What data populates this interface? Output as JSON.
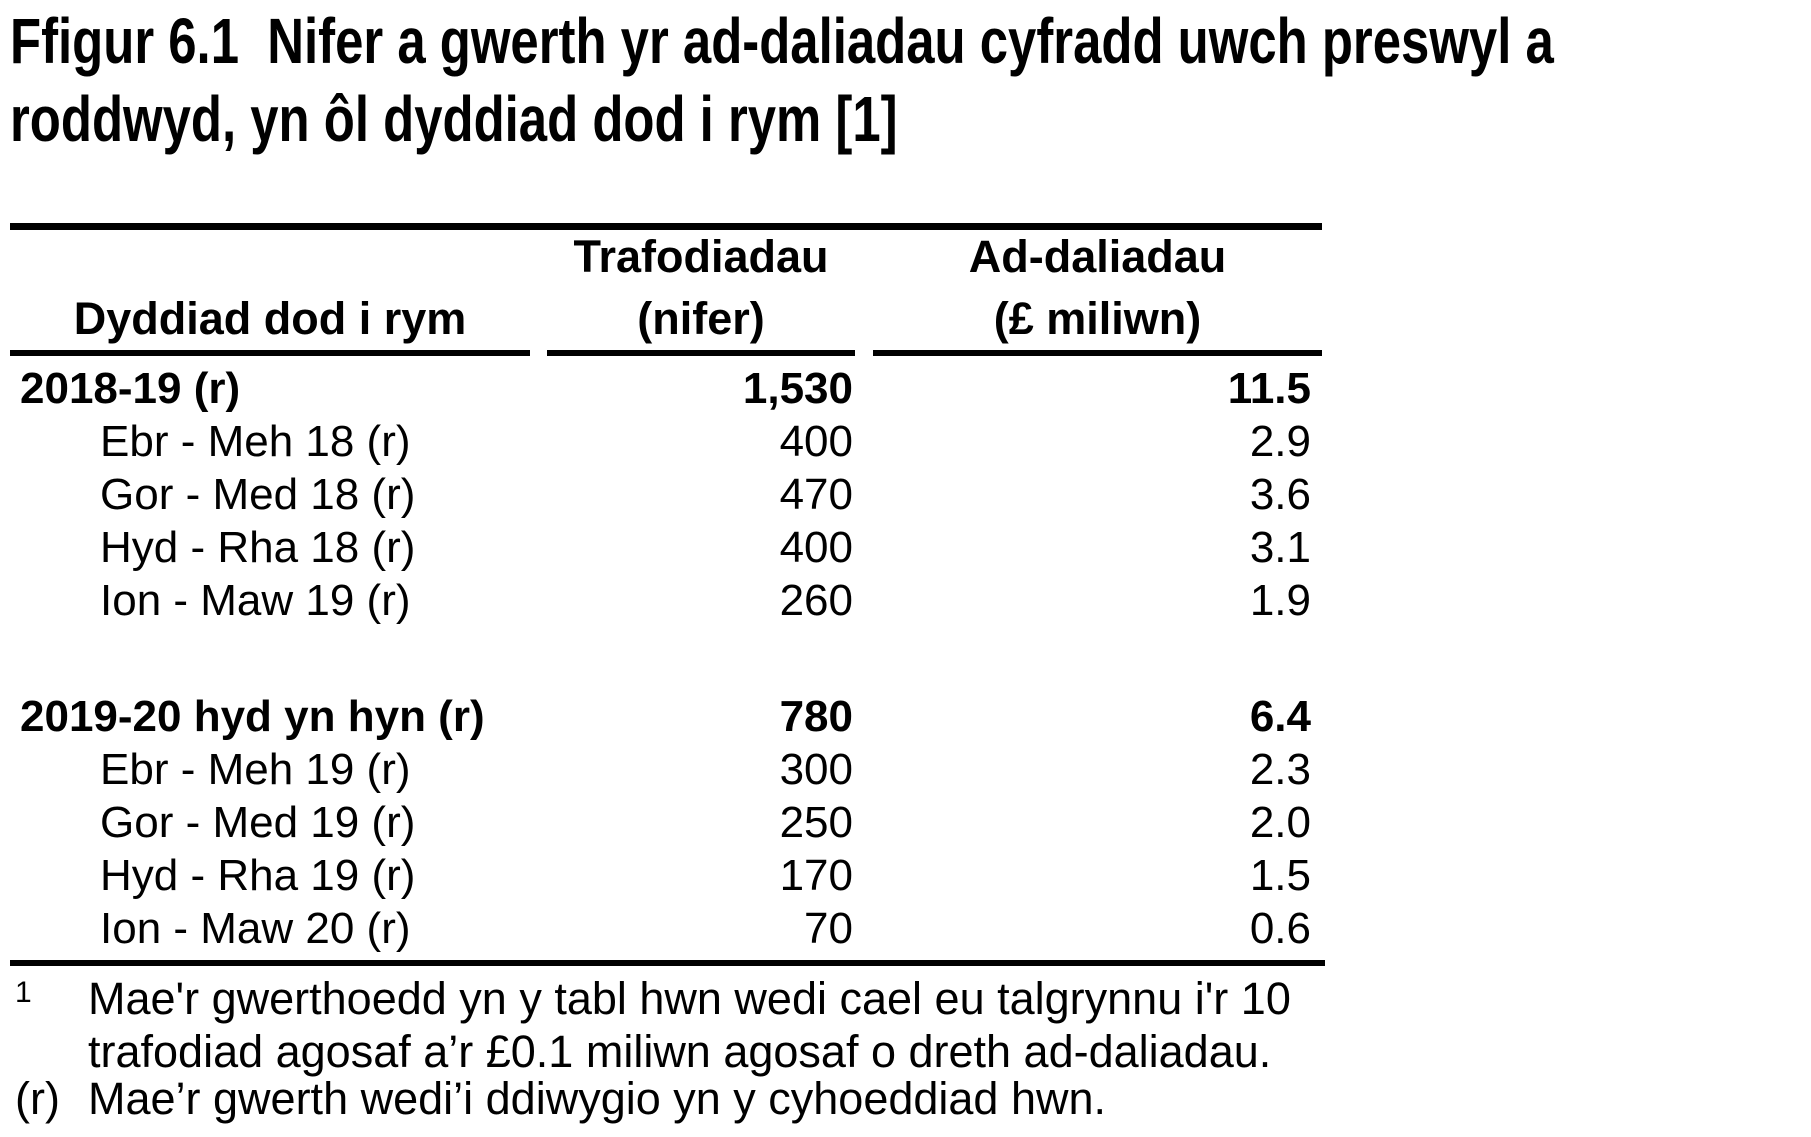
{
  "title": "Ffigur 6.1  Nifer a gwerth yr ad-daliadau cyfradd uwch preswyl a roddwyd, yn ôl dyddiad dod i rym [1]",
  "table": {
    "col_headers": {
      "col1_line2": "Dyddiad dod i rym",
      "col2_line1": "Trafodiadau",
      "col2_line2": "(nifer)",
      "col3_line1": "Ad-daliadau",
      "col3_line2": "(£ miliwn)"
    },
    "rows": [
      {
        "label": "2018-19 (r)",
        "nifer": "1,530",
        "miliwn": "11.5",
        "bold": true,
        "section": true
      },
      {
        "label": "Ebr - Meh 18 (r)",
        "nifer": "400",
        "miliwn": "2.9"
      },
      {
        "label": "Gor - Med 18 (r)",
        "nifer": "470",
        "miliwn": "3.6"
      },
      {
        "label": "Hyd - Rha 18 (r)",
        "nifer": "400",
        "miliwn": "3.1"
      },
      {
        "label": "Ion - Maw 19 (r)",
        "nifer": "260",
        "miliwn": "1.9"
      },
      {
        "spacer": true
      },
      {
        "label": "2019-20 hyd yn hyn (r)",
        "nifer": "780",
        "miliwn": "6.4",
        "bold": true,
        "section": true
      },
      {
        "label": "Ebr - Meh 19 (r)",
        "nifer": "300",
        "miliwn": "2.3"
      },
      {
        "label": "Gor - Med 19 (r)",
        "nifer": "250",
        "miliwn": "2.0"
      },
      {
        "label": "Hyd - Rha 19 (r)",
        "nifer": "170",
        "miliwn": "1.5"
      },
      {
        "label": "Ion - Maw 20 (r)",
        "nifer": "70",
        "miliwn": "0.6"
      }
    ]
  },
  "footnotes": [
    {
      "marker": "1",
      "superscript": true,
      "text": "Mae'r gwerthoedd yn y tabl hwn wedi cael eu talgrynnu i'r 10 trafodiad agosaf a’r £0.1 miliwn agosaf o dreth ad-daliadau."
    },
    {
      "marker": "(r)",
      "superscript": false,
      "text": "Mae’r gwerth wedi’i ddiwygio yn y cyhoeddiad hwn."
    }
  ],
  "colors": {
    "text": "#000000",
    "background": "#ffffff",
    "rule": "#000000"
  }
}
